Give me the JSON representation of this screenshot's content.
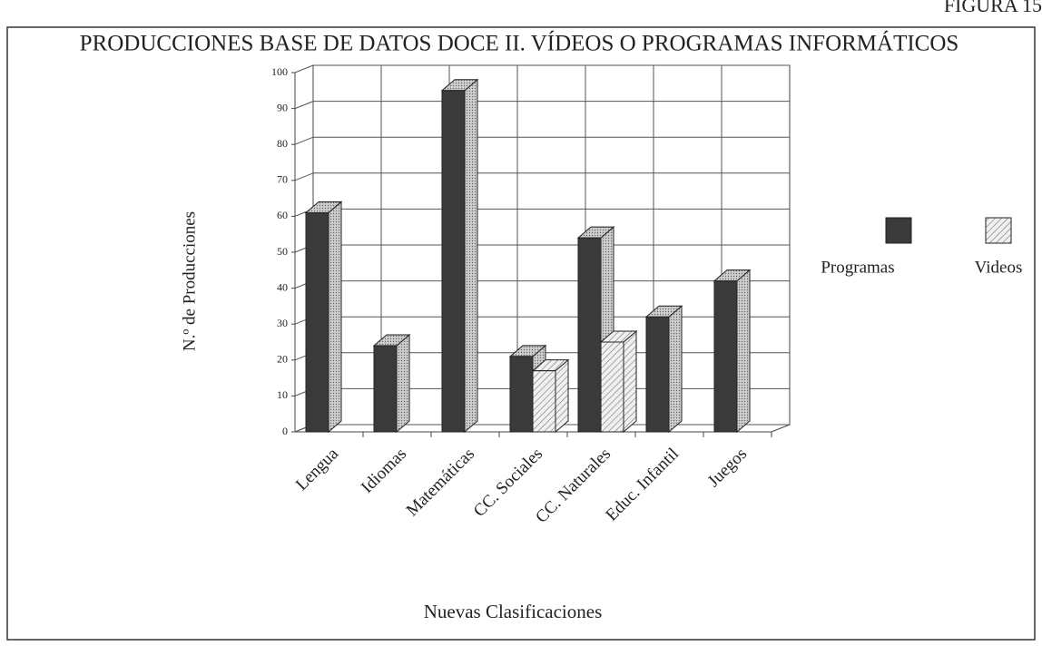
{
  "chart_data": {
    "type": "bar3d",
    "figure_label": "FIGURA 15",
    "title": "PRODUCCIONES BASE DE DATOS DOCE II. VÍDEOS O PROGRAMAS INFORMÁTICOS",
    "x_label": "Nuevas Clasificaciones",
    "y_label": "N.º de Producciones",
    "categories": [
      "Lengua",
      "Idiomas",
      "Matemáticas",
      "CC. Sociales",
      "CC. Naturales",
      "Educ. Infantil",
      "Juegos"
    ],
    "series": [
      {
        "name": "Programas",
        "color": "#3a3a3a",
        "values": [
          61,
          24,
          95,
          21,
          54,
          32,
          42
        ]
      },
      {
        "name": "Videos",
        "color": "#bdbdbd",
        "values": [
          0,
          0,
          0,
          17,
          25,
          0,
          0
        ]
      }
    ],
    "ylim": [
      0,
      100
    ],
    "yticks": [
      0,
      10,
      20,
      30,
      40,
      50,
      60,
      70,
      80,
      90,
      100
    ],
    "grid": true,
    "legend": "right"
  }
}
